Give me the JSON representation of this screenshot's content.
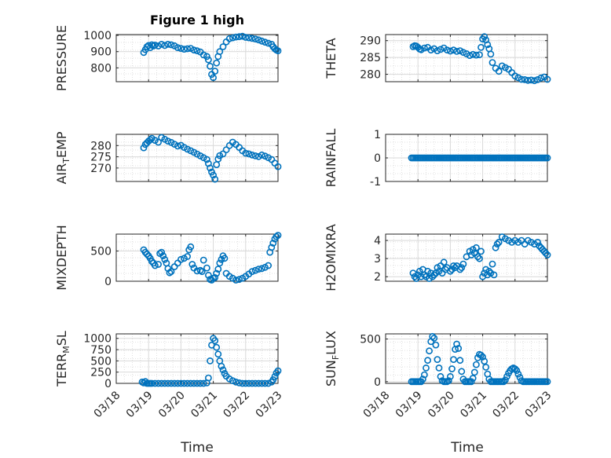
{
  "colors": {
    "marker": "#0072bd",
    "axes": "#262626",
    "grid": "#d9d9d9"
  },
  "chart_data": {
    "type": "scatter",
    "title": "Figure 1 high",
    "xlabel": "Time",
    "date_ticks": [
      "03/18",
      "03/19",
      "03/20",
      "03/21",
      "03/22",
      "03/23"
    ],
    "xlim": [
      0,
      5
    ],
    "panels": [
      {
        "id": "pressure",
        "ylabel": "PRESSURE",
        "ylim": [
          715,
          1005
        ],
        "yticks": [
          "800",
          "900",
          "1000"
        ],
        "ytick_values": [
          800,
          900,
          1000
        ],
        "x": [
          0.85,
          0.9,
          0.95,
          1.0,
          1.05,
          1.1,
          1.15,
          1.2,
          1.3,
          1.4,
          1.5,
          1.6,
          1.7,
          1.8,
          1.9,
          2.0,
          2.1,
          2.2,
          2.3,
          2.4,
          2.5,
          2.6,
          2.7,
          2.8,
          2.85,
          2.9,
          2.95,
          3.0,
          3.05,
          3.1,
          3.15,
          3.2,
          3.3,
          3.4,
          3.5,
          3.6,
          3.7,
          3.8,
          3.9,
          4.0,
          4.1,
          4.2,
          4.3,
          4.4,
          4.5,
          4.6,
          4.7,
          4.8,
          4.85,
          4.9,
          4.95,
          5.0
        ],
        "y": [
          895,
          912,
          930,
          938,
          925,
          942,
          935,
          940,
          935,
          945,
          938,
          945,
          942,
          936,
          925,
          920,
          915,
          918,
          920,
          910,
          905,
          898,
          880,
          870,
          850,
          810,
          760,
          740,
          780,
          830,
          870,
          900,
          930,
          960,
          980,
          985,
          990,
          992,
          995,
          988,
          985,
          982,
          978,
          972,
          965,
          958,
          952,
          945,
          930,
          918,
          910,
          905
        ]
      },
      {
        "id": "theta",
        "ylabel": "THETA",
        "ylim": [
          277.8,
          291.8
        ],
        "yticks": [
          "280",
          "285",
          "290"
        ],
        "ytick_values": [
          280,
          285,
          290
        ],
        "x": [
          0.85,
          0.9,
          0.95,
          1.0,
          1.05,
          1.1,
          1.2,
          1.3,
          1.4,
          1.5,
          1.6,
          1.7,
          1.8,
          1.9,
          2.0,
          2.1,
          2.2,
          2.3,
          2.4,
          2.5,
          2.6,
          2.7,
          2.8,
          2.9,
          2.95,
          3.0,
          3.05,
          3.1,
          3.15,
          3.2,
          3.25,
          3.3,
          3.4,
          3.5,
          3.6,
          3.7,
          3.8,
          3.9,
          4.0,
          4.1,
          4.2,
          4.3,
          4.4,
          4.5,
          4.6,
          4.7,
          4.8,
          4.9,
          5.0
        ],
        "y": [
          288.2,
          288.5,
          288.4,
          288.0,
          287.5,
          287.3,
          287.8,
          288.0,
          287.2,
          287.6,
          287.0,
          287.4,
          287.8,
          287.2,
          286.9,
          287.2,
          286.8,
          287.0,
          286.5,
          286.1,
          285.6,
          285.9,
          285.7,
          285.8,
          288.0,
          290.5,
          291.2,
          290.2,
          288.8,
          287.6,
          286.0,
          283.5,
          281.8,
          280.9,
          282.5,
          282.0,
          281.5,
          280.5,
          279.5,
          279.0,
          278.5,
          278.4,
          278.2,
          278.3,
          278.1,
          278.4,
          278.9,
          279.2,
          278.5
        ]
      },
      {
        "id": "air_temp",
        "ylabel": "AIR",
        "ylabel_sub": "T",
        "ylabel_rest": "EMP",
        "ylim": [
          264,
          285
        ],
        "yticks": [
          "270",
          "275",
          "280"
        ],
        "ytick_values": [
          270,
          275,
          280
        ],
        "x": [
          0.85,
          0.9,
          0.95,
          1.0,
          1.05,
          1.1,
          1.2,
          1.3,
          1.4,
          1.5,
          1.6,
          1.7,
          1.8,
          1.9,
          2.0,
          2.1,
          2.2,
          2.3,
          2.4,
          2.5,
          2.6,
          2.7,
          2.8,
          2.85,
          2.9,
          2.95,
          3.0,
          3.05,
          3.1,
          3.15,
          3.2,
          3.3,
          3.4,
          3.5,
          3.6,
          3.7,
          3.8,
          3.9,
          4.0,
          4.1,
          4.2,
          4.3,
          4.4,
          4.5,
          4.6,
          4.7,
          4.8,
          4.9,
          5.0
        ],
        "y": [
          279.0,
          280.5,
          281.2,
          282.0,
          282.6,
          283.2,
          282.3,
          281.5,
          283.6,
          282.8,
          282.0,
          281.4,
          280.6,
          279.8,
          280.1,
          279.2,
          278.4,
          277.7,
          277.0,
          276.2,
          275.4,
          274.6,
          273.8,
          272.0,
          270.0,
          268.2,
          266.8,
          265.0,
          271.5,
          274.0,
          275.5,
          276.3,
          278.1,
          280.0,
          281.5,
          280.5,
          279.2,
          277.7,
          276.6,
          276.3,
          275.8,
          275.4,
          275.1,
          275.8,
          275.3,
          274.6,
          273.8,
          272.2,
          270.6
        ]
      },
      {
        "id": "rainfall",
        "ylabel": "RAINFALL",
        "ylim": [
          -1,
          1
        ],
        "yticks": [
          "-1",
          "0",
          "1"
        ],
        "ytick_values": [
          -1,
          0,
          1
        ],
        "x": [
          0.8,
          0.85,
          0.9,
          0.95,
          1.0,
          1.05,
          1.1,
          1.15,
          1.2,
          1.25,
          1.3,
          1.35,
          1.4,
          1.45,
          1.5,
          1.55,
          1.6,
          1.65,
          1.7,
          1.75,
          1.8,
          1.85,
          1.9,
          1.95,
          2.0,
          2.05,
          2.1,
          2.15,
          2.2,
          2.25,
          2.3,
          2.35,
          2.4,
          2.45,
          2.5,
          2.55,
          2.6,
          2.65,
          2.7,
          2.75,
          2.8,
          2.85,
          2.9,
          2.95,
          3.0,
          3.05,
          3.1,
          3.15,
          3.2,
          3.25,
          3.3,
          3.35,
          3.4,
          3.45,
          3.5,
          3.55,
          3.6,
          3.65,
          3.7,
          3.75,
          3.8,
          3.85,
          3.9,
          3.95,
          4.0,
          4.05,
          4.1,
          4.15,
          4.2,
          4.25,
          4.3,
          4.35,
          4.4,
          4.45,
          4.5,
          4.55,
          4.6,
          4.65,
          4.7,
          4.75,
          4.8,
          4.85,
          4.9,
          4.95,
          5.0
        ],
        "y": [
          0,
          0,
          0,
          0,
          0,
          0,
          0,
          0,
          0,
          0,
          0,
          0,
          0,
          0,
          0,
          0,
          0,
          0,
          0,
          0,
          0,
          0,
          0,
          0,
          0,
          0,
          0,
          0,
          0,
          0,
          0,
          0,
          0,
          0,
          0,
          0,
          0,
          0,
          0,
          0,
          0,
          0,
          0,
          0,
          0,
          0,
          0,
          0,
          0,
          0,
          0,
          0,
          0,
          0,
          0,
          0,
          0,
          0,
          0,
          0,
          0,
          0,
          0,
          0,
          0,
          0,
          0,
          0,
          0,
          0,
          0,
          0,
          0,
          0,
          0,
          0,
          0,
          0,
          0,
          0,
          0,
          0,
          0,
          0,
          0
        ]
      },
      {
        "id": "mixdepth",
        "ylabel": "MIXDEPTH",
        "ylim": [
          0,
          780
        ],
        "yticks": [
          "0",
          "500"
        ],
        "ytick_values": [
          0,
          500
        ],
        "x": [
          0.85,
          0.9,
          0.95,
          1.0,
          1.05,
          1.1,
          1.15,
          1.2,
          1.3,
          1.35,
          1.4,
          1.45,
          1.5,
          1.55,
          1.6,
          1.65,
          1.7,
          1.8,
          1.9,
          2.0,
          2.1,
          2.2,
          2.25,
          2.3,
          2.35,
          2.4,
          2.5,
          2.6,
          2.65,
          2.7,
          2.8,
          2.85,
          2.9,
          2.95,
          3.0,
          3.05,
          3.1,
          3.15,
          3.2,
          3.25,
          3.3,
          3.35,
          3.4,
          3.5,
          3.6,
          3.7,
          3.8,
          3.9,
          4.0,
          4.1,
          4.2,
          4.3,
          4.4,
          4.5,
          4.6,
          4.7,
          4.75,
          4.8,
          4.85,
          4.9,
          4.95,
          5.0
        ],
        "y": [
          520,
          480,
          450,
          420,
          380,
          330,
          300,
          260,
          280,
          460,
          480,
          420,
          360,
          300,
          210,
          140,
          160,
          240,
          300,
          360,
          380,
          410,
          520,
          570,
          280,
          220,
          170,
          180,
          160,
          350,
          220,
          100,
          30,
          20,
          50,
          60,
          130,
          200,
          300,
          360,
          420,
          380,
          130,
          80,
          50,
          20,
          30,
          50,
          80,
          120,
          160,
          180,
          200,
          210,
          230,
          260,
          480,
          560,
          630,
          700,
          740,
          760
        ]
      },
      {
        "id": "h2omixra",
        "ylabel": "H2OMIXRA",
        "ylim": [
          1.75,
          4.35
        ],
        "yticks": [
          "2",
          "3",
          "4"
        ],
        "ytick_values": [
          2,
          3,
          4
        ],
        "x": [
          0.85,
          0.9,
          0.95,
          1.0,
          1.05,
          1.1,
          1.15,
          1.2,
          1.25,
          1.3,
          1.35,
          1.4,
          1.45,
          1.5,
          1.55,
          1.6,
          1.65,
          1.7,
          1.75,
          1.8,
          1.85,
          1.9,
          2.0,
          2.05,
          2.1,
          2.15,
          2.2,
          2.3,
          2.35,
          2.4,
          2.5,
          2.6,
          2.65,
          2.7,
          2.75,
          2.8,
          2.85,
          2.9,
          2.95,
          3.0,
          3.05,
          3.1,
          3.15,
          3.2,
          3.25,
          3.3,
          3.35,
          3.4,
          3.45,
          3.5,
          3.6,
          3.7,
          3.8,
          3.9,
          4.0,
          4.1,
          4.2,
          4.3,
          4.4,
          4.5,
          4.6,
          4.7,
          4.75,
          4.8,
          4.85,
          4.9,
          4.95,
          5.0
        ],
        "y": [
          2.2,
          2.0,
          1.9,
          2.1,
          2.3,
          2.0,
          2.4,
          2.1,
          2.0,
          2.3,
          1.9,
          2.2,
          2.0,
          2.1,
          2.2,
          2.5,
          2.3,
          2.6,
          2.2,
          2.8,
          2.4,
          2.5,
          2.3,
          2.4,
          2.6,
          2.5,
          2.6,
          2.4,
          2.5,
          2.7,
          3.1,
          3.4,
          3.2,
          3.5,
          3.3,
          3.6,
          3.1,
          3.0,
          3.4,
          2.0,
          2.2,
          2.4,
          2.1,
          2.3,
          2.2,
          2.7,
          2.1,
          3.6,
          3.8,
          3.9,
          4.2,
          4.1,
          4.0,
          3.9,
          4.0,
          3.9,
          4.0,
          3.8,
          4.0,
          3.9,
          3.8,
          3.9,
          3.7,
          3.6,
          3.5,
          3.4,
          3.3,
          3.2
        ]
      },
      {
        "id": "terr_msl",
        "ylabel": "TERR",
        "ylabel_sub": "M",
        "ylabel_rest": "SL",
        "ylim": [
          0,
          1100
        ],
        "yticks": [
          "0",
          "250",
          "500",
          "750",
          "1000"
        ],
        "ytick_values": [
          0,
          250,
          500,
          750,
          1000
        ],
        "x": [
          0.8,
          0.85,
          0.9,
          0.95,
          1.0,
          1.05,
          1.1,
          1.2,
          1.3,
          1.4,
          1.5,
          1.6,
          1.7,
          1.8,
          1.9,
          2.0,
          2.1,
          2.2,
          2.3,
          2.4,
          2.5,
          2.6,
          2.7,
          2.8,
          2.85,
          2.9,
          2.95,
          3.0,
          3.05,
          3.1,
          3.15,
          3.2,
          3.25,
          3.3,
          3.35,
          3.4,
          3.5,
          3.6,
          3.7,
          3.8,
          3.9,
          4.0,
          4.1,
          4.2,
          4.3,
          4.4,
          4.5,
          4.6,
          4.7,
          4.8,
          4.85,
          4.9,
          4.95,
          5.0
        ],
        "y": [
          30,
          10,
          40,
          0,
          0,
          0,
          0,
          0,
          0,
          0,
          0,
          0,
          0,
          0,
          0,
          0,
          0,
          0,
          0,
          0,
          0,
          0,
          0,
          10,
          120,
          500,
          850,
          1000,
          950,
          800,
          650,
          500,
          380,
          300,
          220,
          160,
          100,
          60,
          30,
          10,
          0,
          0,
          0,
          0,
          0,
          0,
          0,
          0,
          0,
          30,
          80,
          150,
          230,
          280
        ]
      },
      {
        "id": "sun_flux",
        "ylabel": "SUN",
        "ylabel_sub": "F",
        "ylabel_rest": "LUX",
        "ylim": [
          -20,
          560
        ],
        "yticks": [
          "0",
          "500"
        ],
        "ytick_values": [
          0,
          500
        ],
        "x": [
          0.8,
          0.85,
          0.9,
          0.95,
          1.0,
          1.05,
          1.1,
          1.15,
          1.2,
          1.25,
          1.3,
          1.35,
          1.4,
          1.45,
          1.5,
          1.55,
          1.6,
          1.65,
          1.7,
          1.75,
          1.8,
          1.85,
          1.9,
          1.95,
          2.0,
          2.05,
          2.1,
          2.15,
          2.2,
          2.25,
          2.3,
          2.35,
          2.4,
          2.45,
          2.5,
          2.55,
          2.6,
          2.65,
          2.7,
          2.75,
          2.8,
          2.85,
          2.9,
          2.95,
          3.0,
          3.05,
          3.1,
          3.15,
          3.2,
          3.25,
          3.3,
          3.35,
          3.4,
          3.45,
          3.5,
          3.55,
          3.6,
          3.65,
          3.7,
          3.75,
          3.8,
          3.85,
          3.9,
          3.95,
          4.0,
          4.05,
          4.1,
          4.15,
          4.2,
          4.25,
          4.3,
          4.35,
          4.4,
          4.45,
          4.5,
          4.55,
          4.6,
          4.65,
          4.7,
          4.75,
          4.8,
          4.85,
          4.9,
          4.95,
          5.0
        ],
        "y": [
          0,
          0,
          0,
          0,
          0,
          0,
          0,
          30,
          80,
          160,
          250,
          360,
          470,
          530,
          510,
          430,
          260,
          160,
          60,
          10,
          0,
          0,
          0,
          10,
          60,
          150,
          260,
          380,
          440,
          390,
          250,
          120,
          30,
          0,
          0,
          0,
          0,
          0,
          40,
          110,
          200,
          280,
          320,
          310,
          290,
          240,
          170,
          90,
          30,
          0,
          0,
          0,
          0,
          0,
          0,
          0,
          0,
          0,
          20,
          60,
          100,
          130,
          150,
          160,
          150,
          130,
          90,
          50,
          10,
          0,
          0,
          0,
          0,
          0,
          0,
          0,
          0,
          0,
          0,
          0,
          0,
          0,
          0,
          0,
          0
        ]
      }
    ]
  }
}
